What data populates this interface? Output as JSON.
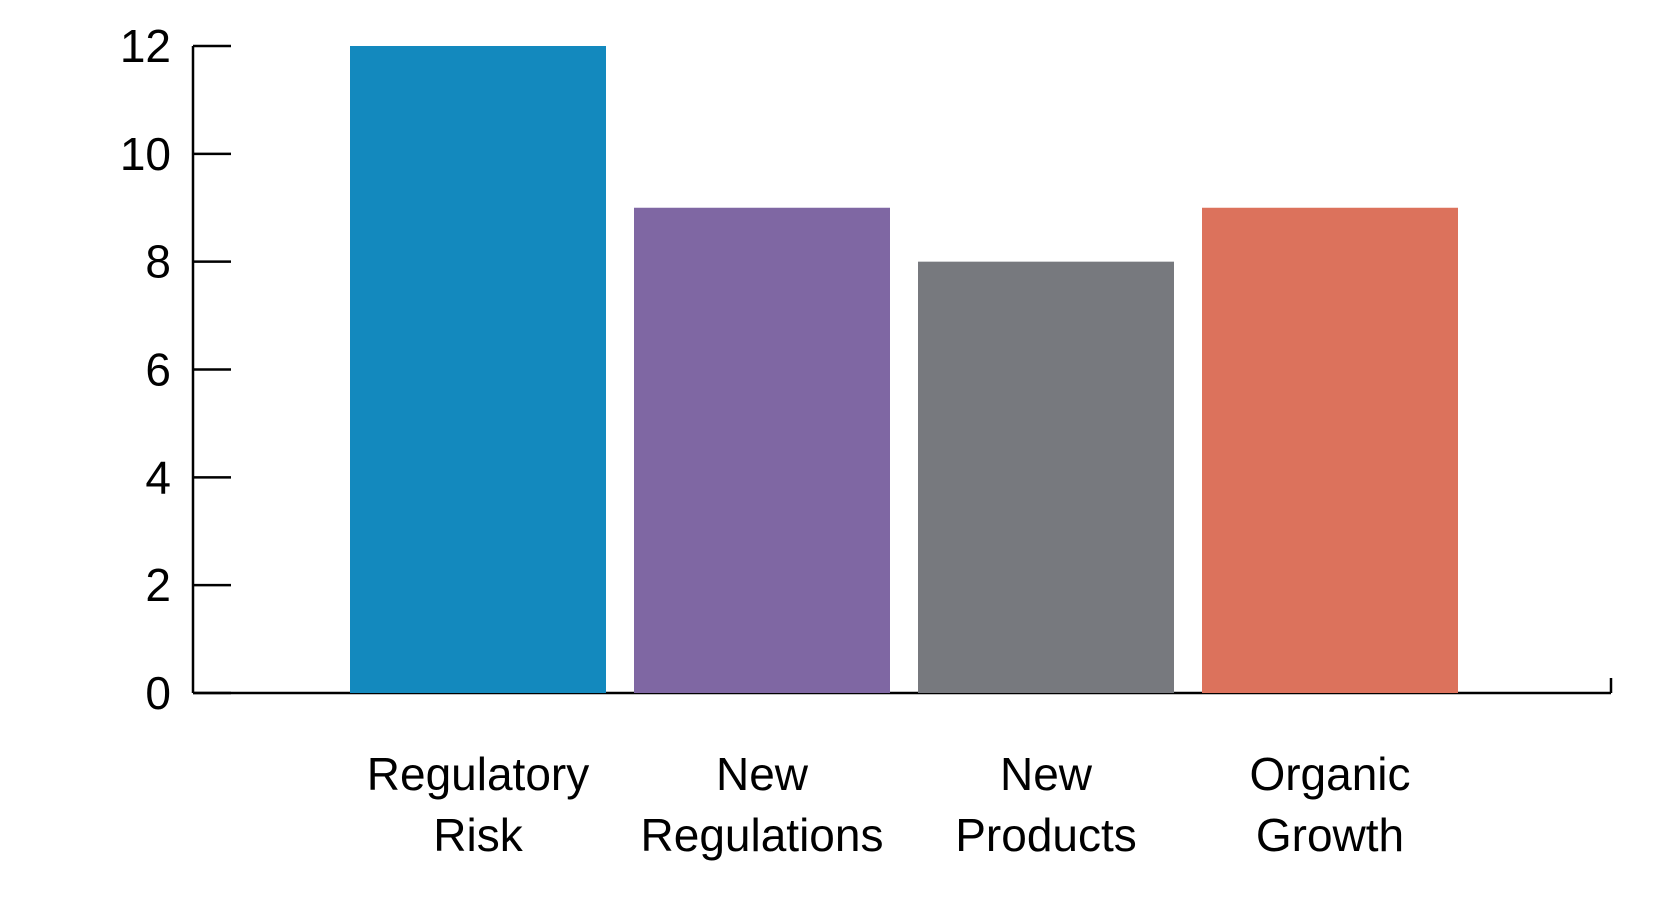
{
  "chart_data": {
    "type": "bar",
    "categories": [
      [
        "Regulatory",
        "Risk"
      ],
      [
        "New",
        "Regulations"
      ],
      [
        "New",
        "Products"
      ],
      [
        "Organic",
        "Growth"
      ]
    ],
    "values": [
      12,
      9,
      8,
      9
    ],
    "colors": [
      "#1389be",
      "#7f67a3",
      "#77797e",
      "#dc725c"
    ],
    "ylim": [
      0,
      12
    ],
    "yticks": [
      0,
      2,
      4,
      6,
      8,
      10,
      12
    ],
    "grid": false,
    "title": "",
    "xlabel": "",
    "ylabel": ""
  }
}
